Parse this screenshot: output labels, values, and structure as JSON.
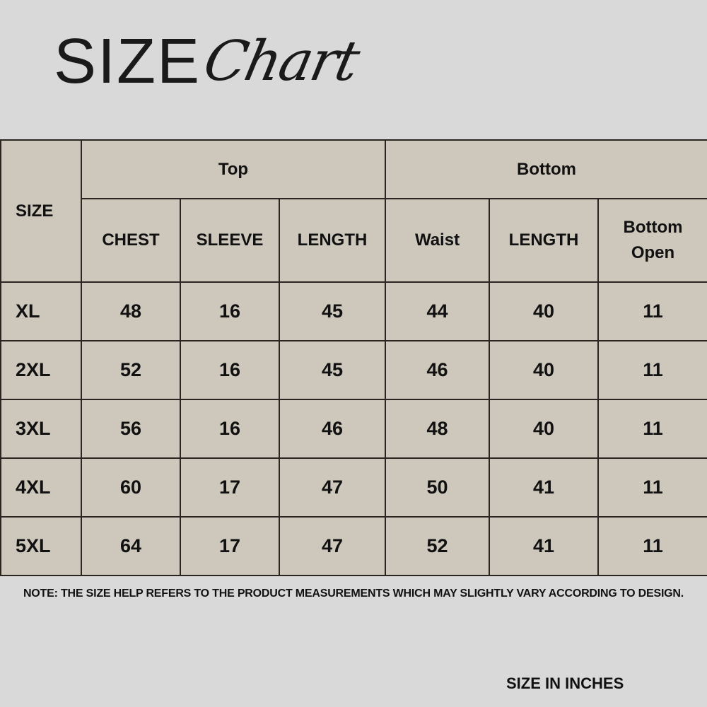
{
  "title": {
    "word1": "SIZE",
    "word2": "Chart"
  },
  "colors": {
    "background": "#d9d9d9",
    "cell": "#cdc7bc",
    "border": "#2a2520"
  },
  "table": {
    "size_header": "SIZE",
    "groups": [
      "Top",
      "Bottom"
    ],
    "columns": [
      "CHEST",
      "SLEEVE",
      "LENGTH",
      "Waist",
      "LENGTH",
      "Bottom Open"
    ],
    "rows": [
      {
        "size": "XL",
        "values": [
          "48",
          "16",
          "45",
          "44",
          "40",
          "11"
        ]
      },
      {
        "size": "2XL",
        "values": [
          "52",
          "16",
          "45",
          "46",
          "40",
          "11"
        ]
      },
      {
        "size": "3XL",
        "values": [
          "56",
          "16",
          "46",
          "48",
          "40",
          "11"
        ]
      },
      {
        "size": "4XL",
        "values": [
          "60",
          "17",
          "47",
          "50",
          "41",
          "11"
        ]
      },
      {
        "size": "5XL",
        "values": [
          "64",
          "17",
          "47",
          "52",
          "41",
          "11"
        ]
      }
    ]
  },
  "note": "NOTE: THE SIZE HELP REFERS TO THE PRODUCT MEASUREMENTS WHICH MAY SLIGHTLY VARY ACCORDING TO DESIGN.",
  "units": "SIZE IN INCHES"
}
